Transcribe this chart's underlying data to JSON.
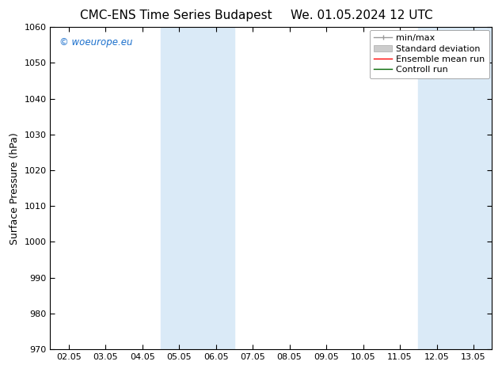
{
  "title_left": "CMC-ENS Time Series Budapest",
  "title_right": "We. 01.05.2024 12 UTC",
  "ylabel": "Surface Pressure (hPa)",
  "ylim": [
    970,
    1060
  ],
  "yticks": [
    970,
    980,
    990,
    1000,
    1010,
    1020,
    1030,
    1040,
    1050,
    1060
  ],
  "xtick_labels": [
    "02.05",
    "03.05",
    "04.05",
    "05.05",
    "06.05",
    "07.05",
    "08.05",
    "09.05",
    "10.05",
    "11.05",
    "12.05",
    "13.05"
  ],
  "xtick_positions": [
    0,
    1,
    2,
    3,
    4,
    5,
    6,
    7,
    8,
    9,
    10,
    11
  ],
  "xlim": [
    -0.5,
    11.5
  ],
  "shaded_bands": [
    {
      "x_start": 2.5,
      "x_end": 4.5,
      "color": "#daeaf7"
    },
    {
      "x_start": 9.5,
      "x_end": 11.5,
      "color": "#daeaf7"
    }
  ],
  "copyright_text": "© woeurope.eu",
  "copyright_color": "#1a6fcc",
  "legend_items": [
    {
      "label": "min/max",
      "color": "#aaaaaa"
    },
    {
      "label": "Standard deviation",
      "color": "#cccccc"
    },
    {
      "label": "Ensemble mean run",
      "color": "#ff0000"
    },
    {
      "label": "Controll run",
      "color": "#008000"
    }
  ],
  "bg_color": "#ffffff",
  "spine_color": "#000000",
  "title_fontsize": 11,
  "tick_fontsize": 8,
  "ylabel_fontsize": 9,
  "legend_fontsize": 8
}
